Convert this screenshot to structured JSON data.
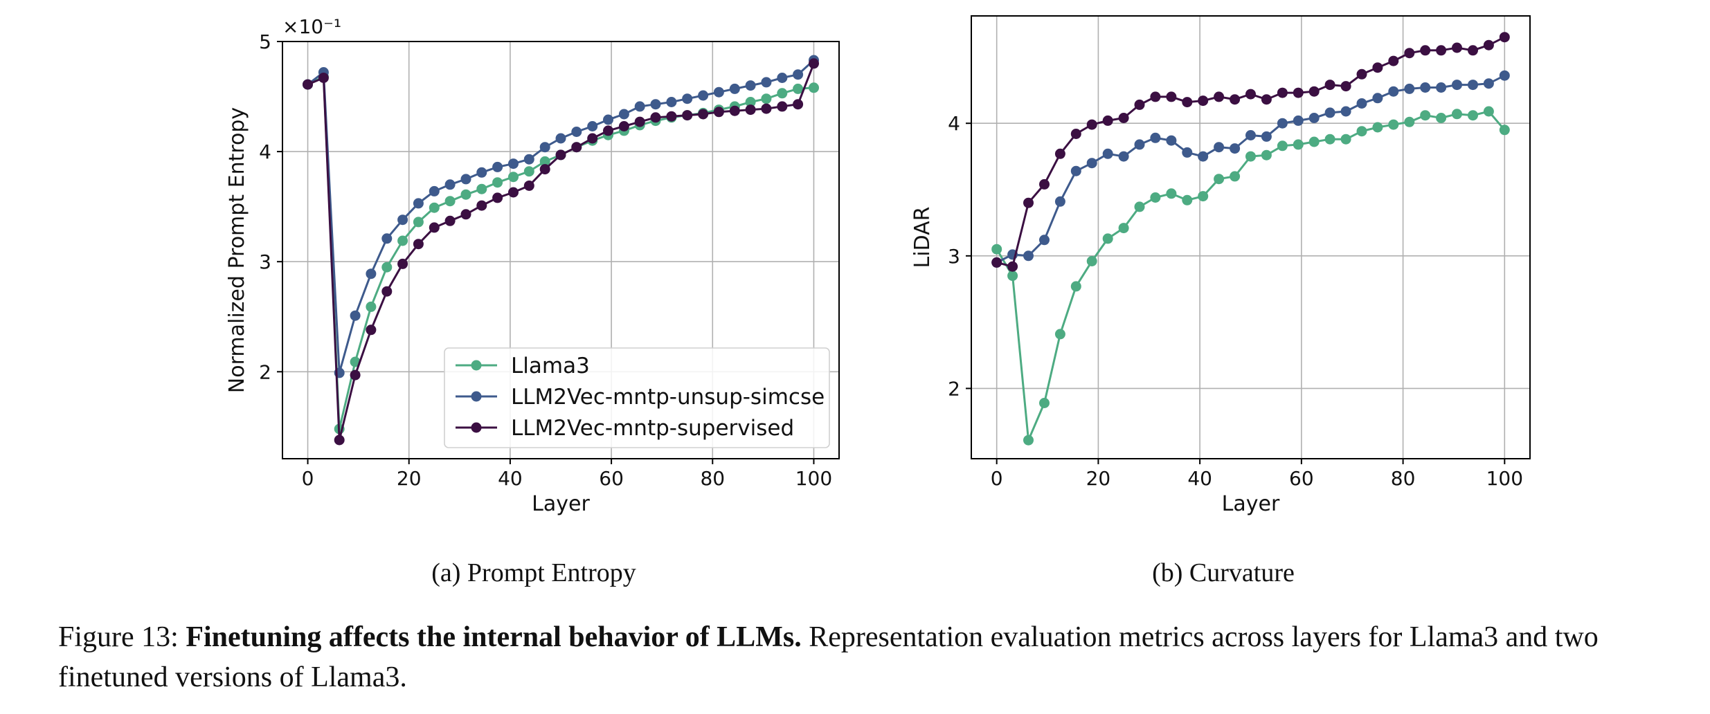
{
  "chart_data": [
    {
      "type": "line",
      "caption": "(a) Prompt Entropy",
      "xlabel": "Layer",
      "ylabel": "Normalized Prompt Entropy",
      "y_multiplier": "×10⁻¹",
      "xlim": [
        -5,
        105
      ],
      "ylim": [
        1.21,
        5.0
      ],
      "xticks": [
        0,
        20,
        40,
        60,
        80,
        100
      ],
      "yticks": [
        2,
        3,
        4,
        5
      ],
      "grid": true,
      "legend": "lower-right",
      "x": [
        0,
        3.125,
        6.25,
        9.375,
        12.5,
        15.625,
        18.75,
        21.875,
        25,
        28.125,
        31.25,
        34.375,
        37.5,
        40.625,
        43.75,
        46.875,
        50,
        53.125,
        56.25,
        59.375,
        62.5,
        65.625,
        68.75,
        71.875,
        75,
        78.125,
        81.25,
        84.375,
        87.5,
        90.625,
        93.75,
        96.875,
        100
      ],
      "series": [
        {
          "name": "Llama3",
          "color": "#4dab82",
          "values": [
            4.61,
            4.68,
            1.48,
            2.09,
            2.59,
            2.95,
            3.19,
            3.36,
            3.49,
            3.55,
            3.61,
            3.66,
            3.72,
            3.77,
            3.82,
            3.91,
            3.97,
            4.04,
            4.1,
            4.15,
            4.19,
            4.24,
            4.28,
            4.31,
            4.33,
            4.35,
            4.38,
            4.41,
            4.45,
            4.48,
            4.53,
            4.57,
            4.58
          ]
        },
        {
          "name": "LLM2Vec-mntp-unsup-simcse",
          "color": "#3e5a8c",
          "values": [
            4.61,
            4.72,
            1.99,
            2.51,
            2.89,
            3.21,
            3.38,
            3.53,
            3.64,
            3.7,
            3.75,
            3.81,
            3.86,
            3.89,
            3.93,
            4.04,
            4.12,
            4.18,
            4.23,
            4.29,
            4.34,
            4.41,
            4.43,
            4.45,
            4.48,
            4.51,
            4.54,
            4.57,
            4.6,
            4.63,
            4.67,
            4.7,
            4.83
          ]
        },
        {
          "name": "LLM2Vec-mntp-supervised",
          "color": "#3b0f42",
          "values": [
            4.61,
            4.67,
            1.38,
            1.97,
            2.38,
            2.73,
            2.98,
            3.16,
            3.31,
            3.37,
            3.43,
            3.51,
            3.58,
            3.63,
            3.69,
            3.84,
            3.97,
            4.04,
            4.12,
            4.19,
            4.23,
            4.27,
            4.31,
            4.32,
            4.33,
            4.34,
            4.36,
            4.37,
            4.38,
            4.39,
            4.41,
            4.43,
            4.8
          ]
        }
      ]
    },
    {
      "type": "line",
      "caption": "(b) Curvature",
      "xlabel": "Layer",
      "ylabel": "LiDAR",
      "xlim": [
        -5,
        105
      ],
      "ylim": [
        1.47,
        4.81
      ],
      "xticks": [
        0,
        20,
        40,
        60,
        80,
        100
      ],
      "yticks": [
        2,
        3,
        4
      ],
      "grid": true,
      "x": [
        0,
        3.125,
        6.25,
        9.375,
        12.5,
        15.625,
        18.75,
        21.875,
        25,
        28.125,
        31.25,
        34.375,
        37.5,
        40.625,
        43.75,
        46.875,
        50,
        53.125,
        56.25,
        59.375,
        62.5,
        65.625,
        68.75,
        71.875,
        75,
        78.125,
        81.25,
        84.375,
        87.5,
        90.625,
        93.75,
        96.875,
        100
      ],
      "series": [
        {
          "name": "Llama3",
          "color": "#4dab82",
          "values": [
            3.05,
            2.85,
            1.61,
            1.89,
            2.41,
            2.77,
            2.96,
            3.13,
            3.21,
            3.37,
            3.44,
            3.47,
            3.42,
            3.45,
            3.58,
            3.6,
            3.75,
            3.76,
            3.83,
            3.84,
            3.86,
            3.88,
            3.88,
            3.94,
            3.97,
            3.99,
            4.01,
            4.06,
            4.04,
            4.07,
            4.06,
            4.09,
            3.95
          ]
        },
        {
          "name": "LLM2Vec-mntp-unsup-simcse",
          "color": "#3e5a8c",
          "values": [
            2.95,
            3.01,
            3.0,
            3.12,
            3.41,
            3.64,
            3.7,
            3.77,
            3.75,
            3.84,
            3.89,
            3.87,
            3.78,
            3.75,
            3.82,
            3.81,
            3.91,
            3.9,
            4.0,
            4.02,
            4.04,
            4.08,
            4.09,
            4.15,
            4.19,
            4.24,
            4.26,
            4.27,
            4.27,
            4.29,
            4.29,
            4.3,
            4.36
          ]
        },
        {
          "name": "LLM2Vec-mntp-supervised",
          "color": "#3b0f42",
          "values": [
            2.95,
            2.92,
            3.4,
            3.54,
            3.77,
            3.92,
            3.99,
            4.02,
            4.04,
            4.14,
            4.2,
            4.2,
            4.16,
            4.17,
            4.2,
            4.18,
            4.22,
            4.18,
            4.23,
            4.23,
            4.24,
            4.29,
            4.28,
            4.37,
            4.42,
            4.47,
            4.53,
            4.55,
            4.55,
            4.57,
            4.55,
            4.59,
            4.65
          ]
        }
      ]
    }
  ],
  "caption": {
    "prefix": "Figure 13: ",
    "bold": "Finetuning affects the internal behavior of LLMs.",
    "rest": " Representation evaluation metrics across layers for Llama3 and two finetuned versions of Llama3."
  }
}
